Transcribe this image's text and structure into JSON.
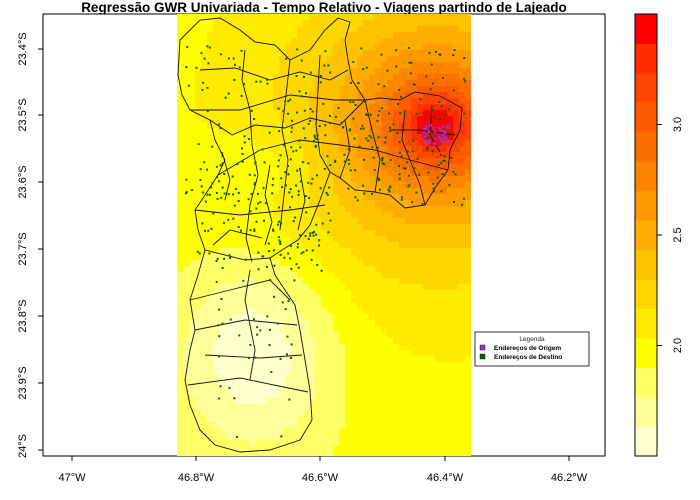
{
  "title": "Regressão GWR Univariada - Tempo Relativo - Viagens partindo de Lajeado",
  "axes": {
    "x_ticks": [
      "47°W",
      "46.8°W",
      "46.6°W",
      "46.4°W",
      "46.2°W"
    ],
    "y_ticks": [
      "23.4°S",
      "23.5°S",
      "23.6°S",
      "23.7°S",
      "23.8°S",
      "23.9°S",
      "24°S"
    ],
    "x_values": [
      -47.0,
      -46.8,
      -46.6,
      -46.4,
      -46.2
    ],
    "y_values": [
      -23.4,
      -23.5,
      -23.6,
      -23.7,
      -23.8,
      -23.9,
      -24.0
    ]
  },
  "colorbar": {
    "tick_labels": [
      "2.0",
      "2.5",
      "3.0"
    ],
    "tick_values": [
      2.0,
      2.5,
      3.0
    ],
    "range": [
      1.5,
      3.5
    ],
    "colors": [
      "#FFFFCC",
      "#FFFF99",
      "#FFFF66",
      "#FFFF00",
      "#FFEB00",
      "#FFD700",
      "#FFC200",
      "#FFAD00",
      "#FF9900",
      "#FF8400",
      "#FF6F00",
      "#FF5B00",
      "#FF4600",
      "#FF2D00",
      "#FF0000"
    ]
  },
  "legend": {
    "title": "Legenda",
    "items": [
      {
        "label": "Endereços de Origem",
        "color": "#9933CC"
      },
      {
        "label": "Endereços de Destino",
        "color": "#006400"
      }
    ]
  },
  "chart_data": {
    "type": "heatmap",
    "title": "Regressão GWR Univariada - Tempo Relativo - Viagens partindo de Lajeado",
    "xlabel": "",
    "ylabel": "",
    "xlim": [
      -47.04,
      -46.14
    ],
    "ylim": [
      -24.0,
      -23.37
    ],
    "value_range": [
      1.5,
      3.5
    ],
    "hotspot": {
      "lon": -46.41,
      "lat": -23.53,
      "value": 3.3
    },
    "coldspot": {
      "lon": -46.7,
      "lat": -23.85,
      "value": 1.6
    },
    "series": [
      {
        "name": "Endereços de Origem",
        "marker": "point",
        "color": "#9933CC",
        "center": {
          "lon": -46.41,
          "lat": -23.54
        }
      },
      {
        "name": "Endereços de Destino",
        "marker": "point",
        "color": "#006400"
      }
    ]
  }
}
